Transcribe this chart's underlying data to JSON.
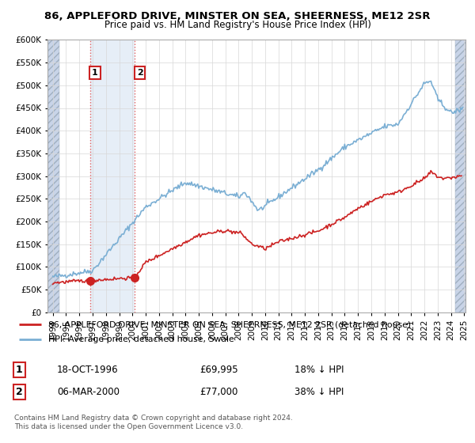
{
  "title": "86, APPLEFORD DRIVE, MINSTER ON SEA, SHEERNESS, ME12 2SR",
  "subtitle": "Price paid vs. HM Land Registry's House Price Index (HPI)",
  "ylim": [
    0,
    600000
  ],
  "yticks": [
    0,
    50000,
    100000,
    150000,
    200000,
    250000,
    300000,
    350000,
    400000,
    450000,
    500000,
    550000,
    600000
  ],
  "sale1_date_x": 1996.8,
  "sale1_price": 69995,
  "sale2_date_x": 2000.17,
  "sale2_price": 77000,
  "sale1_date_str": "18-OCT-1996",
  "sale1_pct": "18% ↓ HPI",
  "sale2_date_str": "06-MAR-2000",
  "sale2_pct": "38% ↓ HPI",
  "hpi_color": "#7bafd4",
  "sale_color": "#cc2222",
  "vline_color": "#e06060",
  "hatch_color": "#c8d4e8",
  "fill_color": "#dce8f5",
  "legend_line1": "86, APPLEFORD DRIVE, MINSTER ON SEA, SHEERNESS, ME12 2SR (detached house)",
  "legend_line2": "HPI: Average price, detached house, Swale",
  "footnote": "Contains HM Land Registry data © Crown copyright and database right 2024.\nThis data is licensed under the Open Government Licence v3.0.",
  "xmin": 1994,
  "xmax": 2025
}
